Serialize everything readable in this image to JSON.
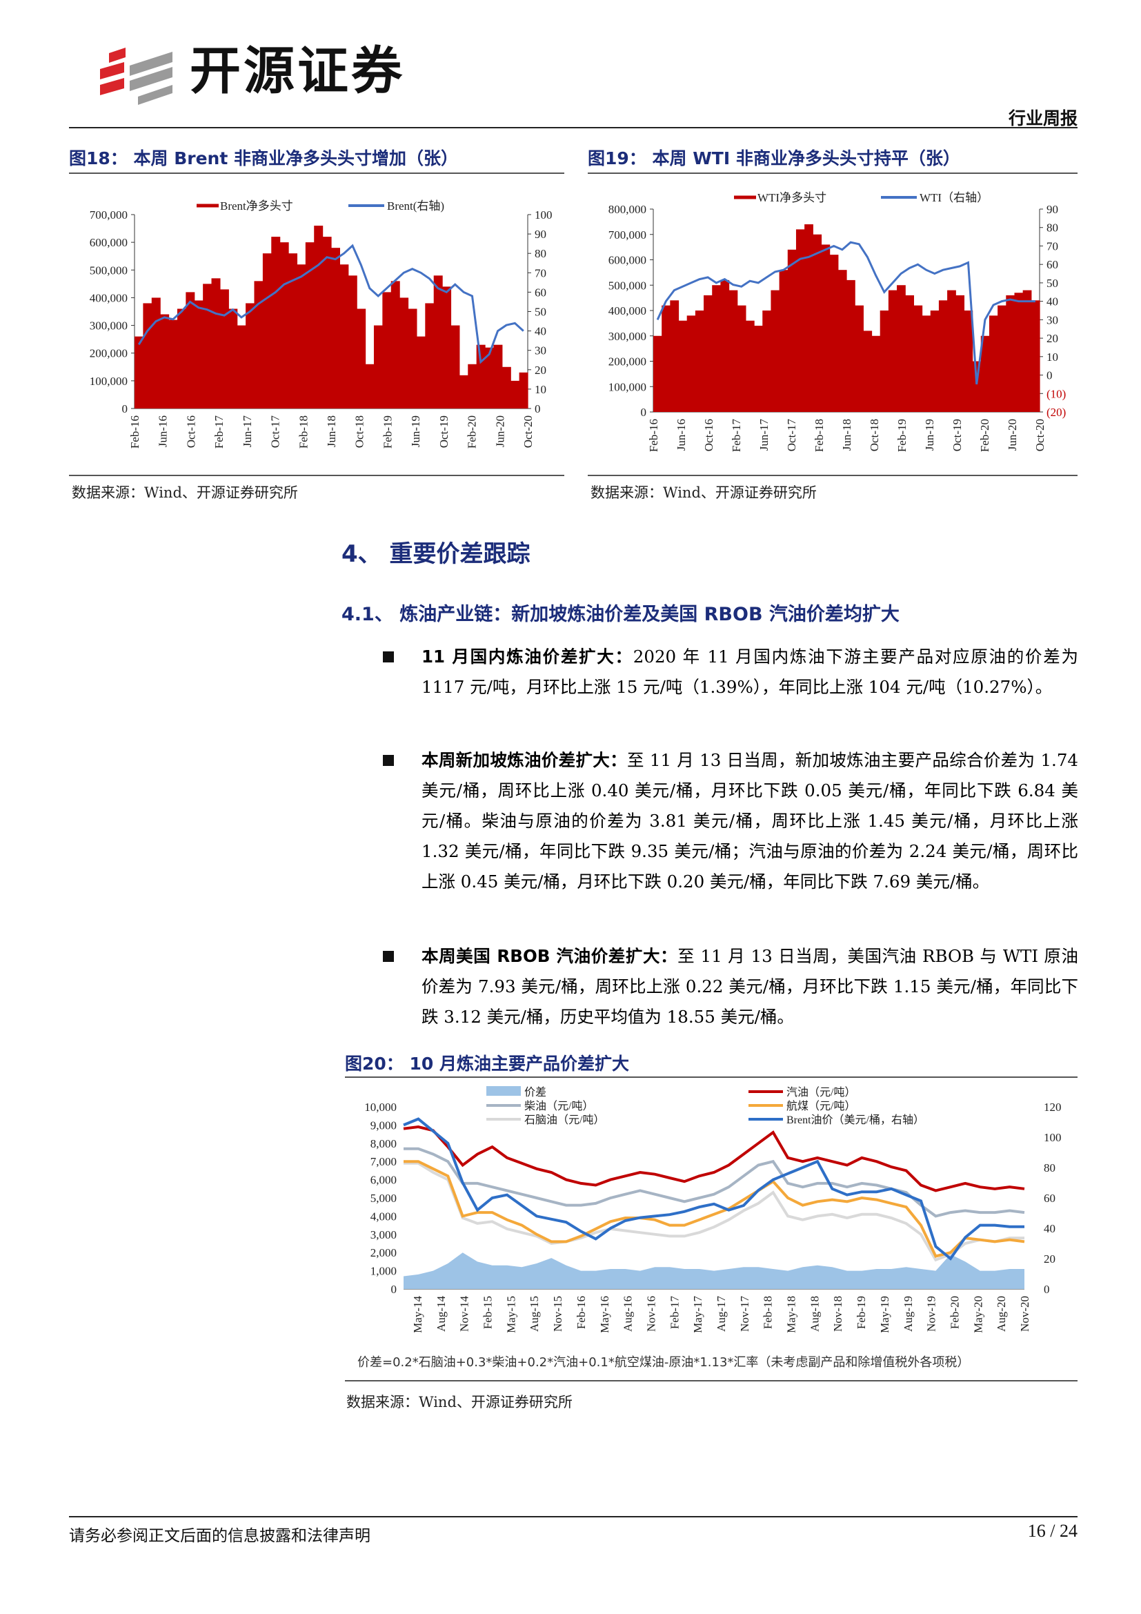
{
  "header": {
    "brand": "开源证券",
    "tag": "行业周报"
  },
  "fig18": {
    "title": "图18：  本周 Brent 非商业净多头头寸增加（张）",
    "source": "数据来源：Wind、开源证券研究所"
  },
  "fig19": {
    "title": "图19：  本周 WTI 非商业净多头头寸持平（张）",
    "source": "数据来源：Wind、开源证券研究所"
  },
  "section4": {
    "title": "4、 重要价差跟踪"
  },
  "section41": {
    "title": "4.1、 炼油产业链：新加坡炼油价差及美国 RBOB 汽油价差均扩大"
  },
  "bullets": [
    {
      "bold": "11 月国内炼油价差扩大：",
      "text": "2020 年 11 月国内炼油下游主要产品对应原油的价差为 1117 元/吨，月环比上涨 15 元/吨（1.39%），年同比上涨 104 元/吨（10.27%）。"
    },
    {
      "bold": "本周新加坡炼油价差扩大：",
      "text": "至 11 月 13 日当周，新加坡炼油主要产品综合价差为 1.74 美元/桶，周环比上涨 0.40 美元/桶，月环比下跌 0.05 美元/桶，年同比下跌 6.84 美元/桶。柴油与原油的价差为 3.81 美元/桶，周环比上涨 1.45 美元/桶，月环比上涨 1.32 美元/桶，年同比下跌 9.35 美元/桶；汽油与原油的价差为 2.24 美元/桶，周环比上涨 0.45 美元/桶，月环比下跌 0.20 美元/桶，年同比下跌 7.69 美元/桶。"
    },
    {
      "bold": "本周美国 RBOB 汽油价差扩大：",
      "text": "至 11 月 13 日当周，美国汽油 RBOB 与 WTI 原油价差为 7.93 美元/桶，周环比上涨 0.22 美元/桶，月环比下跌 1.15 美元/桶，年同比下跌 3.12 美元/桶，历史平均值为 18.55 美元/桶。"
    }
  ],
  "fig20": {
    "title": "图20：  10 月炼油主要产品价差扩大",
    "footnote": "价差=0.2*石脑油+0.3*柴油+0.2*汽油+0.1*航空煤油-原油*1.13*汇率（未考虑副产品和除增值税外各项税）",
    "source": "数据来源：Wind、开源证券研究所"
  },
  "footer": {
    "left": "请务必参阅正文后面的信息披露和法律声明",
    "page": "16 / 24"
  },
  "colors": {
    "navy": "#1c2d7a",
    "brent_bar": "#c00000",
    "brent_line": "#4472c4",
    "spread_area": "#9dc3e6",
    "gasoline": "#c00000",
    "diesel": "#a6b4c4",
    "jet": "#f4a83a",
    "naphtha": "#d9d9d9",
    "brent_price": "#2e6fc7"
  },
  "chart_data": [
    {
      "id": "fig18",
      "type": "bar+line",
      "x_ticks": [
        "Feb-16",
        "Jun-16",
        "Oct-16",
        "Feb-17",
        "Jun-17",
        "Oct-17",
        "Feb-18",
        "Jun-18",
        "Oct-18",
        "Feb-19",
        "Jun-19",
        "Oct-19",
        "Feb-20",
        "Jun-20",
        "Oct-20"
      ],
      "ylim_left": [
        0,
        700000
      ],
      "ylim_right": [
        0,
        100
      ],
      "y_ticks_left": [
        "700,000",
        "600,000",
        "500,000",
        "400,000",
        "300,000",
        "200,000",
        "100,000",
        "0"
      ],
      "y_ticks_right": [
        "100",
        "90",
        "80",
        "70",
        "60",
        "50",
        "40",
        "30",
        "20",
        "10",
        "0"
      ],
      "series": [
        {
          "name": "Brent净多头寸",
          "axis": "left",
          "kind": "bar",
          "values": [
            260000,
            380000,
            400000,
            340000,
            320000,
            360000,
            420000,
            390000,
            450000,
            470000,
            430000,
            360000,
            300000,
            380000,
            460000,
            560000,
            620000,
            600000,
            560000,
            520000,
            600000,
            660000,
            620000,
            580000,
            520000,
            480000,
            360000,
            160000,
            300000,
            420000,
            460000,
            400000,
            360000,
            260000,
            380000,
            480000,
            440000,
            300000,
            120000,
            160000,
            230000,
            220000,
            230000,
            150000,
            100000,
            130000
          ]
        },
        {
          "name": "Brent(右轴)",
          "axis": "right",
          "kind": "line",
          "values": [
            33,
            40,
            45,
            47,
            46,
            50,
            55,
            52,
            51,
            49,
            48,
            51,
            47,
            50,
            54,
            57,
            60,
            64,
            66,
            68,
            71,
            74,
            78,
            77,
            80,
            84,
            74,
            62,
            58,
            62,
            66,
            70,
            72,
            70,
            67,
            62,
            60,
            64,
            60,
            58,
            24,
            28,
            40,
            43,
            44,
            40
          ]
        }
      ]
    },
    {
      "id": "fig19",
      "type": "bar+line",
      "x_ticks": [
        "Feb-16",
        "Jun-16",
        "Oct-16",
        "Feb-17",
        "Jun-17",
        "Oct-17",
        "Feb-18",
        "Jun-18",
        "Oct-18",
        "Feb-19",
        "Jun-19",
        "Oct-19",
        "Feb-20",
        "Jun-20",
        "Oct-20"
      ],
      "ylim_left": [
        0,
        800000
      ],
      "ylim_right": [
        -20,
        90
      ],
      "y_ticks_left": [
        "800,000",
        "700,000",
        "600,000",
        "500,000",
        "400,000",
        "300,000",
        "200,000",
        "100,000",
        "0"
      ],
      "y_ticks_right": [
        "90",
        "80",
        "70",
        "60",
        "50",
        "40",
        "30",
        "20",
        "10",
        "0",
        "(10)",
        "(20)"
      ],
      "series": [
        {
          "name": "WTI净多头寸",
          "axis": "left",
          "kind": "bar",
          "values": [
            300000,
            420000,
            440000,
            360000,
            380000,
            400000,
            460000,
            500000,
            520000,
            480000,
            420000,
            360000,
            340000,
            400000,
            480000,
            560000,
            640000,
            720000,
            740000,
            700000,
            660000,
            620000,
            560000,
            520000,
            420000,
            320000,
            300000,
            400000,
            480000,
            500000,
            460000,
            420000,
            380000,
            400000,
            440000,
            480000,
            460000,
            400000,
            200000,
            300000,
            380000,
            420000,
            460000,
            470000,
            480000,
            440000
          ]
        },
        {
          "name": "WTI（右轴）",
          "axis": "right",
          "kind": "line",
          "values": [
            30,
            40,
            46,
            48,
            50,
            52,
            53,
            50,
            52,
            49,
            48,
            51,
            50,
            53,
            56,
            57,
            60,
            63,
            64,
            66,
            68,
            70,
            68,
            72,
            71,
            64,
            54,
            45,
            50,
            55,
            58,
            60,
            57,
            55,
            57,
            58,
            59,
            61,
            -5,
            30,
            38,
            40,
            41,
            40,
            40,
            40
          ]
        }
      ]
    },
    {
      "id": "fig20",
      "type": "area+line",
      "x_ticks": [
        "May-14",
        "Aug-14",
        "Nov-14",
        "Feb-15",
        "May-15",
        "Aug-15",
        "Nov-15",
        "Feb-16",
        "May-16",
        "Aug-16",
        "Nov-16",
        "Feb-17",
        "May-17",
        "Aug-17",
        "Nov-17",
        "Feb-18",
        "May-18",
        "Aug-18",
        "Nov-18",
        "Feb-19",
        "May-19",
        "Aug-19",
        "Nov-19",
        "Feb-20",
        "May-20",
        "Aug-20",
        "Nov-20"
      ],
      "ylim_left": [
        0,
        10000
      ],
      "ylim_right": [
        0,
        120
      ],
      "y_ticks_left": [
        "10,000",
        "9,000",
        "8,000",
        "7,000",
        "6,000",
        "5,000",
        "4,000",
        "3,000",
        "2,000",
        "1,000",
        "0"
      ],
      "y_ticks_right": [
        "120",
        "100",
        "80",
        "60",
        "40",
        "20",
        "0"
      ],
      "series": [
        {
          "name": "价差",
          "axis": "left",
          "kind": "area",
          "values": [
            700,
            800,
            1000,
            1400,
            2000,
            1500,
            1300,
            1300,
            1200,
            1400,
            1700,
            1300,
            1000,
            1000,
            1100,
            1100,
            1000,
            1200,
            1200,
            1100,
            1100,
            1000,
            1100,
            1200,
            1200,
            1100,
            1000,
            1200,
            1300,
            1200,
            1000,
            1000,
            1100,
            1100,
            1200,
            1100,
            1000,
            1900,
            1500,
            1000,
            1000,
            1100,
            1100
          ]
        },
        {
          "name": "汽油（元/吨）",
          "axis": "left",
          "kind": "line",
          "values": [
            8800,
            8900,
            8700,
            7800,
            6800,
            7400,
            7800,
            7200,
            6900,
            6600,
            6400,
            6000,
            5800,
            5700,
            6000,
            6200,
            6400,
            6300,
            6100,
            5900,
            6200,
            6400,
            6800,
            7400,
            8000,
            8600,
            7200,
            7000,
            7200,
            7000,
            6800,
            7200,
            7000,
            6700,
            6500,
            5700,
            5400,
            5600,
            5800,
            5600,
            5500,
            5600,
            5500
          ]
        },
        {
          "name": "柴油（元/吨）",
          "axis": "left",
          "kind": "line",
          "values": [
            7700,
            7700,
            7400,
            7000,
            5800,
            5800,
            5600,
            5400,
            5200,
            5000,
            4800,
            4600,
            4600,
            4700,
            5000,
            5200,
            5400,
            5200,
            5000,
            4800,
            5000,
            5200,
            5600,
            6200,
            6800,
            7000,
            5800,
            5600,
            5800,
            5800,
            5600,
            5800,
            5700,
            5500,
            5300,
            4600,
            4000,
            4200,
            4300,
            4200,
            4200,
            4300,
            4200
          ]
        },
        {
          "name": "航煤（元/吨）",
          "axis": "left",
          "kind": "line",
          "values": [
            7000,
            7000,
            6600,
            6200,
            4000,
            4200,
            4200,
            3800,
            3500,
            3000,
            2600,
            2600,
            2900,
            3300,
            3700,
            3900,
            3900,
            3800,
            3500,
            3500,
            3800,
            4100,
            4400,
            4900,
            5400,
            5900,
            5000,
            4600,
            4800,
            4900,
            4800,
            5000,
            4900,
            4700,
            4500,
            3500,
            1800,
            2000,
            2800,
            2700,
            2600,
            2700,
            2600
          ]
        },
        {
          "name": "石脑油（元/吨）",
          "axis": "left",
          "kind": "line",
          "values": [
            6900,
            6900,
            6400,
            6000,
            3900,
            3600,
            3700,
            3300,
            3100,
            2900,
            2500,
            2600,
            2800,
            3100,
            3300,
            3200,
            3100,
            3000,
            2900,
            2900,
            3100,
            3400,
            3800,
            4300,
            4700,
            5300,
            4000,
            3800,
            4000,
            4100,
            3900,
            4100,
            4100,
            3900,
            3600,
            3000,
            1600,
            1900,
            2500,
            2700,
            2600,
            2800,
            2800
          ]
        },
        {
          "name": "Brent油价（美元/桶，右轴）",
          "axis": "right",
          "kind": "line",
          "values": [
            108,
            112,
            104,
            96,
            70,
            52,
            60,
            62,
            55,
            48,
            46,
            44,
            38,
            33,
            40,
            45,
            47,
            48,
            49,
            51,
            54,
            56,
            52,
            55,
            65,
            72,
            76,
            80,
            84,
            66,
            62,
            64,
            64,
            66,
            62,
            58,
            28,
            20,
            34,
            42,
            42,
            41,
            41
          ]
        }
      ]
    }
  ]
}
